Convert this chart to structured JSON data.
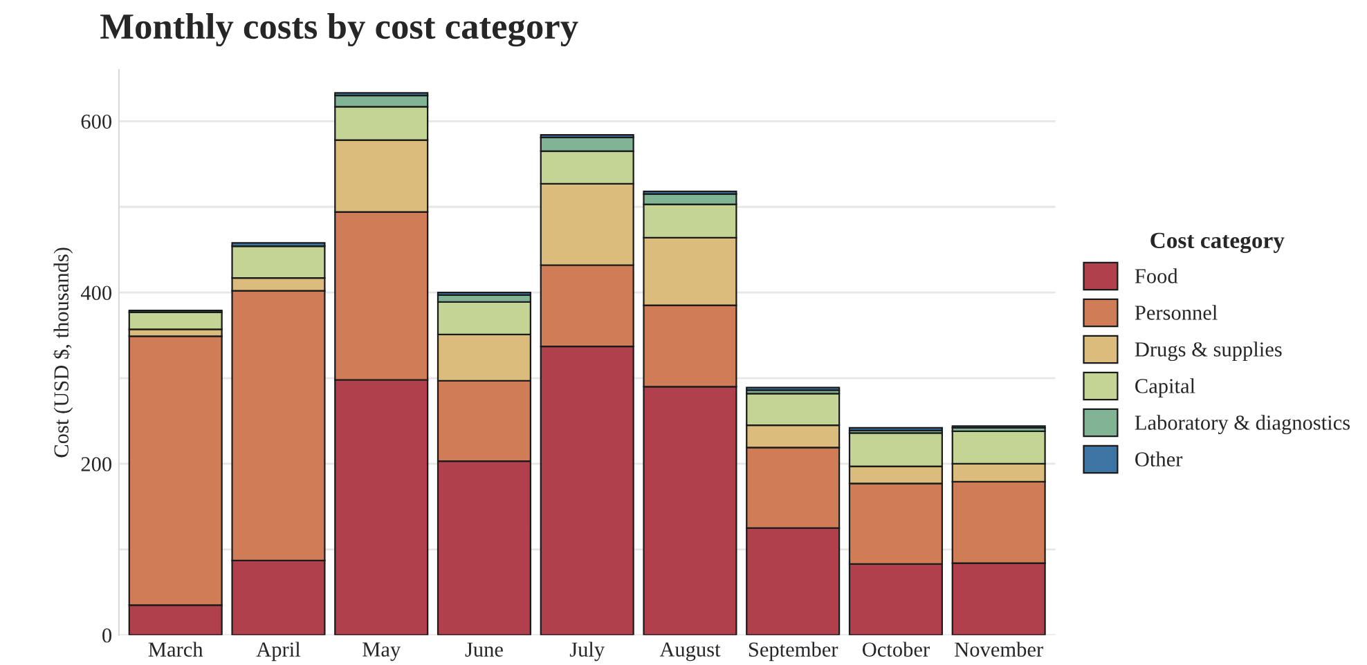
{
  "chart_data": {
    "type": "bar",
    "title": "Monthly costs by cost category",
    "ylabel": "Cost (USD $, thousands)",
    "legend_title": "Cost category",
    "categories": [
      "March",
      "April",
      "May",
      "June",
      "July",
      "August",
      "September",
      "October",
      "November"
    ],
    "stacked": true,
    "legend": "right",
    "grid": "y",
    "ylim": [
      0,
      660
    ],
    "yticks": [
      0,
      {
        "value": 100,
        "label": null
      },
      200,
      {
        "value": 300,
        "label": null
      },
      400,
      {
        "value": 500,
        "label": null
      },
      600
    ],
    "series": [
      {
        "name": "Food",
        "color": "#b0404c",
        "values": [
          35,
          87,
          298,
          203,
          337,
          290,
          125,
          83,
          84
        ]
      },
      {
        "name": "Personnel",
        "color": "#d07c56",
        "values": [
          314,
          315,
          196,
          94,
          95,
          95,
          94,
          94,
          95
        ]
      },
      {
        "name": "Drugs & supplies",
        "color": "#dcbc7c",
        "values": [
          8,
          15,
          84,
          54,
          95,
          79,
          26,
          20,
          21
        ]
      },
      {
        "name": "Capital",
        "color": "#c4d494",
        "values": [
          20,
          37,
          39,
          38,
          38,
          39,
          37,
          39,
          38
        ]
      },
      {
        "name": "Laboratory & diagnostics",
        "color": "#80b494",
        "values": [
          null,
          null,
          13,
          8,
          16,
          12,
          4,
          3,
          4
        ]
      },
      {
        "name": "Other",
        "color": "#3c74a4",
        "values": [
          2,
          4,
          3,
          3,
          3,
          3,
          3,
          3,
          2
        ]
      }
    ]
  }
}
